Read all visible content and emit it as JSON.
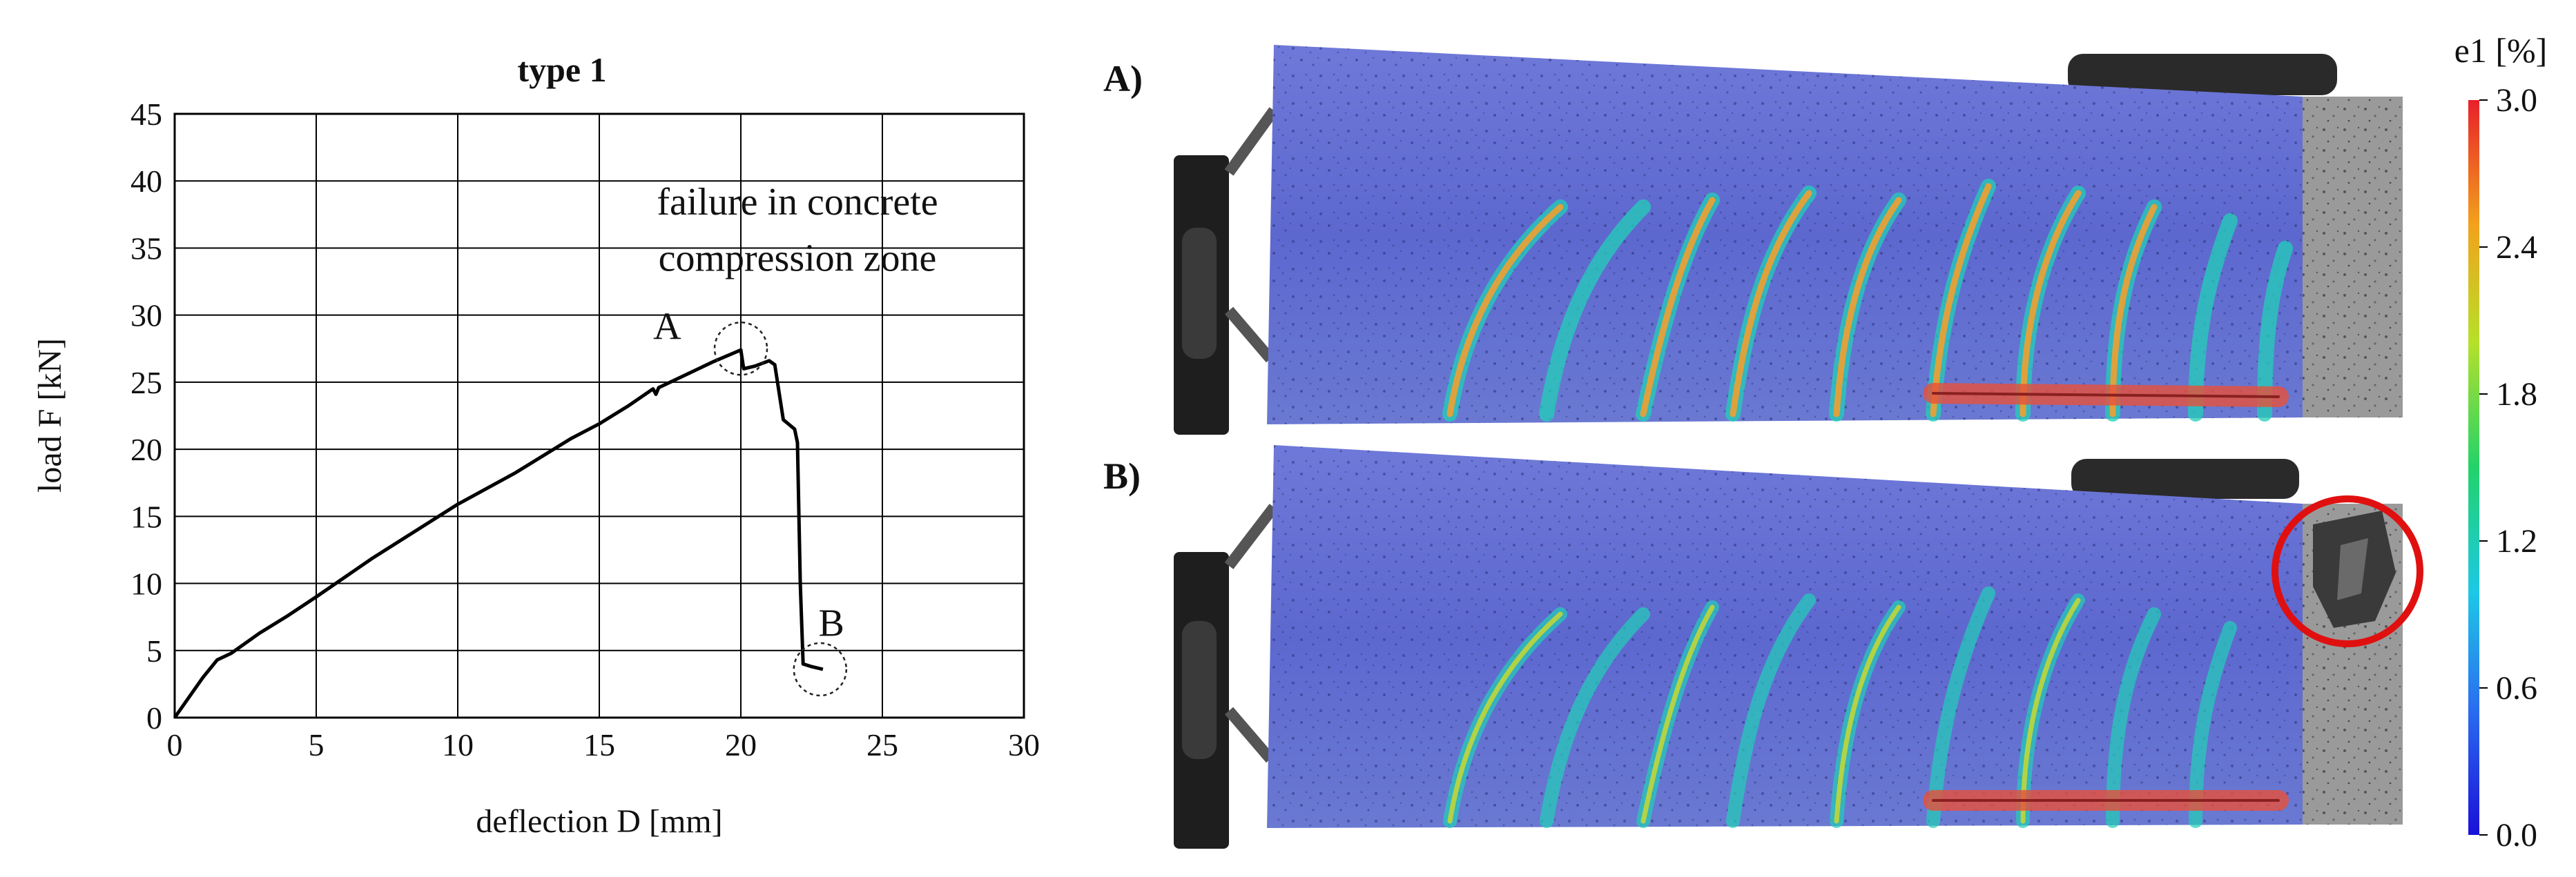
{
  "chart_data": {
    "type": "line",
    "title": "type 1",
    "xlabel": "deflection D [mm]",
    "ylabel": "load F [kN]",
    "xlim": [
      0,
      30
    ],
    "ylim": [
      0,
      45
    ],
    "xticks": [
      "0",
      "5",
      "10",
      "15",
      "20",
      "25",
      "30"
    ],
    "yticks": [
      "0",
      "5",
      "10",
      "15",
      "20",
      "25",
      "30",
      "35",
      "40",
      "45"
    ],
    "grid": true,
    "series": [
      {
        "points": [
          [
            0,
            0
          ],
          [
            0.5,
            1.5
          ],
          [
            1,
            3
          ],
          [
            1.5,
            4.3
          ],
          [
            2,
            4.8
          ],
          [
            3,
            6.3
          ],
          [
            4,
            7.6
          ],
          [
            5,
            9.0
          ],
          [
            7,
            11.9
          ],
          [
            10,
            15.9
          ],
          [
            12,
            18.2
          ],
          [
            14,
            20.8
          ],
          [
            15,
            21.9
          ],
          [
            16,
            23.2
          ],
          [
            16.9,
            24.5
          ],
          [
            17.0,
            24.1
          ],
          [
            17.1,
            24.6
          ],
          [
            18,
            25.5
          ],
          [
            19,
            26.5
          ],
          [
            20,
            27.4
          ],
          [
            20.1,
            26.0
          ],
          [
            20.5,
            26.2
          ],
          [
            21,
            26.6
          ],
          [
            21.2,
            26.3
          ],
          [
            21.5,
            22.2
          ],
          [
            21.9,
            21.5
          ],
          [
            22.0,
            20.5
          ],
          [
            22.1,
            10.0
          ],
          [
            22.2,
            4.0
          ],
          [
            22.5,
            3.8
          ],
          [
            22.9,
            3.6
          ]
        ]
      }
    ],
    "annotations": [
      {
        "text": "failure in concrete",
        "x": 22.0,
        "y": 37.5
      },
      {
        "text": "compression zone",
        "x": 22.0,
        "y": 33.3
      },
      {
        "text": "A",
        "x": 17.4,
        "y": 28.2
      },
      {
        "text": "B",
        "x": 23.2,
        "y": 6.1
      }
    ],
    "markers": [
      {
        "label": "A",
        "x": 20.0,
        "y": 27.5
      },
      {
        "label": "B",
        "x": 22.8,
        "y": 3.6
      }
    ]
  },
  "panels": [
    {
      "label": "A)"
    },
    {
      "label": "B)"
    }
  ],
  "colorbar": {
    "title": "e1 [%]",
    "ticks": [
      "3.0",
      "2.4",
      "1.8",
      "1.2",
      "0.6",
      "0.0"
    ]
  }
}
